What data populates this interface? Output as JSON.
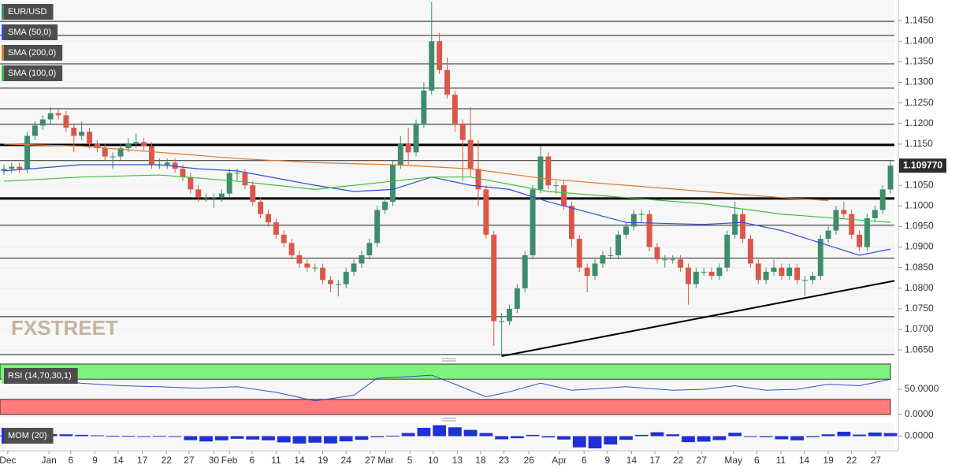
{
  "chart_data": [
    {
      "type": "candlestick",
      "name": "EUR/USD",
      "up_color": "#3d8c6c",
      "down_color": "#d9574a",
      "open": [
        1.1085,
        1.109,
        1.1095,
        1.109,
        1.117,
        1.1195,
        1.121,
        1.1225,
        1.122,
        1.119,
        1.117,
        1.118,
        1.115,
        1.114,
        1.112,
        1.112,
        1.114,
        1.115,
        1.1155,
        1.1145,
        1.11,
        1.11,
        1.1105,
        1.109,
        1.107,
        1.104,
        1.102,
        1.102,
        1.102,
        1.103,
        1.108,
        1.108,
        1.105,
        1.101,
        1.098,
        1.096,
        1.093,
        1.091,
        1.088,
        1.086,
        1.085,
        1.085,
        1.082,
        1.081,
        1.081,
        1.084,
        1.086,
        1.088,
        1.091,
        1.099,
        1.101,
        1.11,
        1.115,
        1.113,
        1.12,
        1.128,
        1.14,
        1.133,
        1.127,
        1.12,
        1.116,
        1.109,
        1.104,
        1.093,
        1.072,
        1.072,
        1.075,
        1.08,
        1.088,
        1.104,
        1.112,
        1.105,
        1.105,
        1.1,
        1.092,
        1.085,
        1.083,
        1.086,
        1.088,
        1.088,
        1.093,
        1.095,
        1.098,
        1.098,
        1.09,
        1.087,
        1.087,
        1.087,
        1.085,
        1.081,
        1.084,
        1.084,
        1.083,
        1.085,
        1.093,
        1.098,
        1.092,
        1.086,
        1.082,
        1.084,
        1.085,
        1.083,
        1.085,
        1.082,
        1.082,
        1.083,
        1.092,
        1.094,
        1.099,
        1.098,
        1.093,
        1.09,
        1.097,
        1.099,
        1.104
      ],
      "high": [
        1.11,
        1.1105,
        1.1105,
        1.118,
        1.1205,
        1.122,
        1.124,
        1.1235,
        1.123,
        1.12,
        1.1205,
        1.119,
        1.116,
        1.115,
        1.113,
        1.115,
        1.1165,
        1.1175,
        1.1165,
        1.1155,
        1.1115,
        1.1115,
        1.1115,
        1.11,
        1.108,
        1.105,
        1.103,
        1.103,
        1.104,
        1.109,
        1.109,
        1.109,
        1.106,
        1.102,
        1.099,
        1.097,
        1.094,
        1.092,
        1.089,
        1.087,
        1.086,
        1.086,
        1.083,
        1.082,
        1.085,
        1.087,
        1.089,
        1.092,
        1.1,
        1.102,
        1.111,
        1.117,
        1.119,
        1.121,
        1.13,
        1.1495,
        1.142,
        1.136,
        1.128,
        1.121,
        1.124,
        1.116,
        1.105,
        1.094,
        1.074,
        1.076,
        1.081,
        1.089,
        1.105,
        1.1145,
        1.113,
        1.106,
        1.106,
        1.101,
        1.093,
        1.086,
        1.087,
        1.089,
        1.09,
        1.094,
        1.096,
        1.099,
        1.099,
        1.099,
        1.091,
        1.088,
        1.088,
        1.088,
        1.086,
        1.085,
        1.085,
        1.085,
        1.086,
        1.094,
        1.101,
        1.099,
        1.093,
        1.087,
        1.085,
        1.087,
        1.086,
        1.086,
        1.086,
        1.083,
        1.084,
        1.093,
        1.095,
        1.1,
        1.101,
        1.099,
        1.094,
        1.098,
        1.1,
        1.105,
        1.111
      ],
      "low": [
        1.1075,
        1.108,
        1.108,
        1.108,
        1.116,
        1.1185,
        1.12,
        1.121,
        1.118,
        1.113,
        1.116,
        1.114,
        1.113,
        1.111,
        1.109,
        1.111,
        1.113,
        1.114,
        1.1135,
        1.109,
        1.109,
        1.109,
        1.108,
        1.106,
        1.103,
        1.101,
        1.101,
        1.0995,
        1.101,
        1.102,
        1.106,
        1.104,
        1.1,
        1.097,
        1.095,
        1.092,
        1.09,
        1.087,
        1.085,
        1.084,
        1.084,
        1.081,
        1.079,
        1.078,
        1.08,
        1.083,
        1.085,
        1.087,
        1.09,
        1.098,
        1.1,
        1.109,
        1.11,
        1.112,
        1.119,
        1.127,
        1.132,
        1.126,
        1.118,
        1.106,
        1.107,
        1.1,
        1.092,
        1.066,
        1.0635,
        1.071,
        1.074,
        1.079,
        1.087,
        1.103,
        1.104,
        1.103,
        1.099,
        1.09,
        1.084,
        1.079,
        1.082,
        1.085,
        1.087,
        1.087,
        1.092,
        1.094,
        1.096,
        1.089,
        1.086,
        1.085,
        1.086,
        1.084,
        1.076,
        1.08,
        1.083,
        1.082,
        1.082,
        1.084,
        1.092,
        1.091,
        1.085,
        1.081,
        1.081,
        1.083,
        1.082,
        1.082,
        1.081,
        1.078,
        1.081,
        1.082,
        1.091,
        1.093,
        1.097,
        1.092,
        1.089,
        1.089,
        1.096,
        1.098,
        1.103
      ],
      "close": [
        1.109,
        1.1095,
        1.109,
        1.117,
        1.1195,
        1.121,
        1.1225,
        1.122,
        1.119,
        1.117,
        1.118,
        1.115,
        1.114,
        1.112,
        1.112,
        1.114,
        1.115,
        1.1155,
        1.1145,
        1.11,
        1.11,
        1.1105,
        1.109,
        1.107,
        1.104,
        1.102,
        1.102,
        1.102,
        1.103,
        1.108,
        1.108,
        1.105,
        1.101,
        1.098,
        1.096,
        1.093,
        1.091,
        1.088,
        1.086,
        1.085,
        1.085,
        1.082,
        1.081,
        1.081,
        1.084,
        1.086,
        1.088,
        1.091,
        1.099,
        1.101,
        1.11,
        1.115,
        1.113,
        1.12,
        1.128,
        1.14,
        1.133,
        1.127,
        1.12,
        1.116,
        1.109,
        1.104,
        1.093,
        1.072,
        1.072,
        1.075,
        1.08,
        1.088,
        1.104,
        1.112,
        1.105,
        1.105,
        1.1,
        1.092,
        1.085,
        1.083,
        1.086,
        1.088,
        1.088,
        1.093,
        1.095,
        1.098,
        1.098,
        1.09,
        1.087,
        1.087,
        1.087,
        1.085,
        1.081,
        1.084,
        1.084,
        1.083,
        1.085,
        1.093,
        1.098,
        1.092,
        1.086,
        1.082,
        1.084,
        1.085,
        1.083,
        1.085,
        1.082,
        1.082,
        1.083,
        1.092,
        1.094,
        1.099,
        1.098,
        1.093,
        1.09,
        1.097,
        1.099,
        1.104,
        1.10977
      ],
      "lines": [
        {
          "name": "SMA (50,0)",
          "color": "#2d4fd6",
          "x": [
            0,
            10,
            20,
            25,
            30,
            40,
            45,
            50,
            55,
            60,
            65,
            70,
            80,
            90,
            95,
            100,
            105,
            110,
            114
          ],
          "values": [
            1.1085,
            1.11,
            1.11,
            1.109,
            1.1085,
            1.105,
            1.1035,
            1.104,
            1.107,
            1.105,
            1.104,
            1.101,
            1.096,
            1.0955,
            1.096,
            1.094,
            1.091,
            1.088,
            1.0895
          ]
        },
        {
          "name": "SMA (200,0)",
          "color": "#e07b2a",
          "x": [
            0,
            10,
            20,
            30,
            40,
            50,
            60,
            70,
            80,
            90,
            100,
            106
          ],
          "values": [
            1.115,
            1.1145,
            1.113,
            1.1115,
            1.1105,
            1.11,
            1.109,
            1.1065,
            1.105,
            1.1035,
            1.102,
            1.1013
          ]
        },
        {
          "name": "SMA (100,0)",
          "color": "#3fbf3f",
          "x": [
            0,
            10,
            20,
            30,
            40,
            50,
            55,
            60,
            70,
            80,
            90,
            100,
            114
          ],
          "values": [
            1.106,
            1.107,
            1.1075,
            1.106,
            1.104,
            1.106,
            1.107,
            1.107,
            1.1035,
            1.102,
            1.1005,
            1.098,
            1.096
          ]
        }
      ],
      "levels": [
        1.1448,
        1.1414,
        1.1345,
        1.1286,
        1.1236,
        1.1198,
        1.111,
        1.0953,
        1.0873,
        1.0731,
        1.0639
      ],
      "major_levels": [
        1.1148,
        1.1018
      ],
      "trendline": {
        "x": [
          64,
          114.5
        ],
        "values": [
          1.0635,
          1.0818
        ]
      },
      "last_price": {
        "value": 1.10977,
        "label": "1.109770"
      },
      "logo": "FXSTREET",
      "xlim": [
        -0.5,
        114.5
      ],
      "ylim": [
        1.0635,
        1.15
      ],
      "grid": true,
      "yticks": [
        {
          "value": 1.065,
          "label": "1.0650"
        },
        {
          "value": 1.07,
          "label": "1.0700"
        },
        {
          "value": 1.075,
          "label": "1.0750"
        },
        {
          "value": 1.08,
          "label": "1.0800"
        },
        {
          "value": 1.085,
          "label": "1.0850"
        },
        {
          "value": 1.09,
          "label": "1.0900"
        },
        {
          "value": 1.095,
          "label": "1.0950"
        },
        {
          "value": 1.1,
          "label": "1.1000"
        },
        {
          "value": 1.105,
          "label": "1.1050"
        },
        {
          "value": 1.11,
          "label": "1.1100"
        },
        {
          "value": 1.115,
          "label": "1.1150"
        },
        {
          "value": 1.12,
          "label": "1.1200"
        },
        {
          "value": 1.125,
          "label": "1.1250"
        },
        {
          "value": 1.13,
          "label": "1.1300"
        },
        {
          "value": 1.135,
          "label": "1.1350"
        },
        {
          "value": 1.14,
          "label": "1.1400"
        },
        {
          "value": 1.145,
          "label": "1.1450"
        }
      ],
      "xticks": [
        {
          "value": 0.5,
          "label": "Dec"
        },
        {
          "value": 5.8,
          "label": "Jan"
        },
        {
          "value": 8.6,
          "label": "6"
        },
        {
          "value": 11.7,
          "label": "9"
        },
        {
          "value": 14.7,
          "label": "14"
        },
        {
          "value": 17.8,
          "label": "17"
        },
        {
          "value": 20.9,
          "label": "22"
        },
        {
          "value": 23.8,
          "label": "27"
        },
        {
          "value": 27,
          "label": "30"
        },
        {
          "value": 29,
          "label": "Feb"
        },
        {
          "value": 31.9,
          "label": "6"
        },
        {
          "value": 35,
          "label": "11"
        },
        {
          "value": 38,
          "label": "14"
        },
        {
          "value": 41,
          "label": "19"
        },
        {
          "value": 44,
          "label": "24"
        },
        {
          "value": 47.1,
          "label": "27"
        },
        {
          "value": 49.1,
          "label": "Mar"
        },
        {
          "value": 52.2,
          "label": "5"
        },
        {
          "value": 55.2,
          "label": "10"
        },
        {
          "value": 58.3,
          "label": "13"
        },
        {
          "value": 61.3,
          "label": "18"
        },
        {
          "value": 64.3,
          "label": "23"
        },
        {
          "value": 67.5,
          "label": "26"
        },
        {
          "value": 71.4,
          "label": "Apr"
        },
        {
          "value": 74.6,
          "label": "6"
        },
        {
          "value": 77.6,
          "label": "9"
        },
        {
          "value": 80.7,
          "label": "14"
        },
        {
          "value": 83.7,
          "label": "17"
        },
        {
          "value": 86.7,
          "label": "22"
        },
        {
          "value": 89.7,
          "label": "27"
        },
        {
          "value": 93.8,
          "label": "May"
        },
        {
          "value": 96.8,
          "label": "6"
        },
        {
          "value": 99.9,
          "label": "11"
        },
        {
          "value": 102.9,
          "label": "14"
        },
        {
          "value": 106,
          "label": "19"
        },
        {
          "value": 109,
          "label": "22"
        },
        {
          "value": 112.1,
          "label": "27"
        }
      ]
    },
    {
      "type": "line",
      "name": "RSI (14,70,30,1)",
      "color": "#3050c8",
      "x": [
        0,
        5,
        10,
        15,
        20,
        25,
        30,
        35,
        40,
        45,
        48,
        52,
        55,
        58,
        62,
        65,
        69,
        73,
        77,
        80,
        86,
        90,
        94,
        98,
        102,
        106,
        110,
        114
      ],
      "values": [
        62,
        70,
        62,
        57,
        55,
        52,
        55,
        44,
        27,
        38,
        72,
        75,
        78,
        60,
        35,
        45,
        62,
        48,
        52,
        55,
        48,
        50,
        57,
        48,
        50,
        60,
        57,
        70
      ],
      "bands": {
        "upper": 70,
        "lower": 30,
        "upper_color": "#7ef27c",
        "lower_color": "#ff7a7a"
      },
      "ylim": [
        0,
        100
      ],
      "yticks": [
        {
          "value": 50,
          "label": "50.0000"
        },
        {
          "value": 0,
          "label": "0.0000"
        }
      ]
    },
    {
      "type": "bar",
      "name": "MOM (20)",
      "color": "#1f2fd6",
      "x": [
        0,
        2,
        4,
        6,
        8,
        10,
        12,
        14,
        16,
        18,
        20,
        22,
        24,
        26,
        28,
        30,
        32,
        34,
        36,
        38,
        40,
        42,
        44,
        46,
        48,
        50,
        52,
        54,
        56,
        58,
        60,
        62,
        64,
        66,
        68,
        70,
        72,
        74,
        76,
        78,
        80,
        82,
        84,
        86,
        88,
        90,
        92,
        94,
        96,
        98,
        100,
        102,
        104,
        106,
        108,
        110,
        112,
        114
      ],
      "values": [
        0.002,
        0.003,
        0.006,
        0.008,
        0.007,
        0.005,
        0.003,
        0.001,
        0.001,
        0.0,
        0.001,
        0.0,
        -0.0155,
        -0.0205,
        -0.016,
        -0.01,
        -0.013,
        -0.016,
        -0.024,
        -0.0285,
        -0.025,
        -0.028,
        -0.02,
        -0.014,
        -0.004,
        0.002,
        0.012,
        0.032,
        0.042,
        0.034,
        0.024,
        0.012,
        -0.012,
        -0.008,
        0.005,
        -0.005,
        -0.013,
        -0.043,
        -0.047,
        -0.032,
        -0.014,
        0.005,
        0.015,
        0.007,
        -0.023,
        -0.021,
        -0.015,
        0.013,
        0.0,
        -0.004,
        -0.012,
        -0.016,
        -0.004,
        0.007,
        0.017,
        0.006,
        0.014,
        0.0118
      ],
      "ylim": [
        -0.05,
        0.05
      ],
      "yticks": [
        {
          "value": 0,
          "label": "0.0000"
        }
      ]
    }
  ]
}
